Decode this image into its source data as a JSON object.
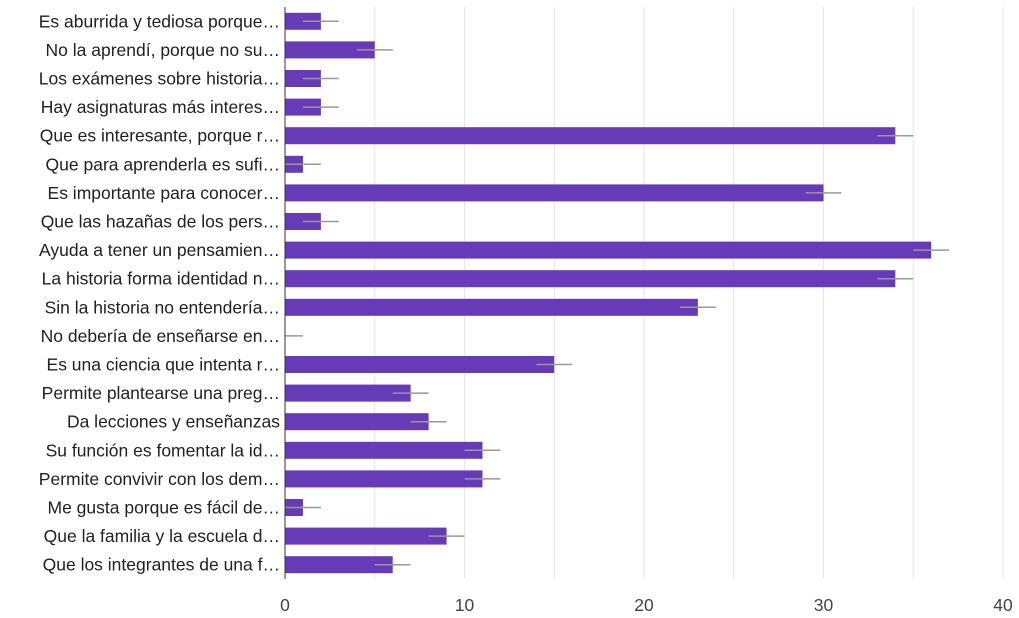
{
  "chart_data": {
    "type": "bar",
    "orientation": "horizontal",
    "categories": [
      "Es aburrida y tediosa porque…",
      "No la aprendí, porque no su…",
      "Los exámenes sobre historia…",
      "Hay asignaturas más interes…",
      "Que es interesante, porque r…",
      "Que para aprenderla es sufi…",
      "Es importante para conocer…",
      "Que las hazañas de los pers…",
      "Ayuda a tener un pensamien…",
      "La historia forma identidad n…",
      "Sin la historia no entendería…",
      "No debería de enseñarse en…",
      "Es una ciencia que intenta r…",
      "Permite plantearse una preg…",
      "Da lecciones y enseñanzas",
      "Su función es fomentar la id…",
      "Permite convivir con los dem…",
      "Me gusta porque es fácil de…",
      "Que la familia y la escuela d…",
      "Que los integrantes de una f…"
    ],
    "values": [
      2,
      5,
      2,
      2,
      34,
      1,
      30,
      2,
      36,
      34,
      23,
      0,
      15,
      7,
      8,
      11,
      11,
      1,
      9,
      6
    ],
    "error_bar": 1,
    "xlim": [
      0,
      40
    ],
    "xticks": [
      0,
      10,
      20,
      30,
      40
    ],
    "title": "",
    "xlabel": "",
    "ylabel": "",
    "grid": true,
    "colors": {
      "bar": "#673ab7",
      "error_bar": "#999999",
      "grid": "#e6e6e6",
      "axis": "#333333"
    }
  }
}
